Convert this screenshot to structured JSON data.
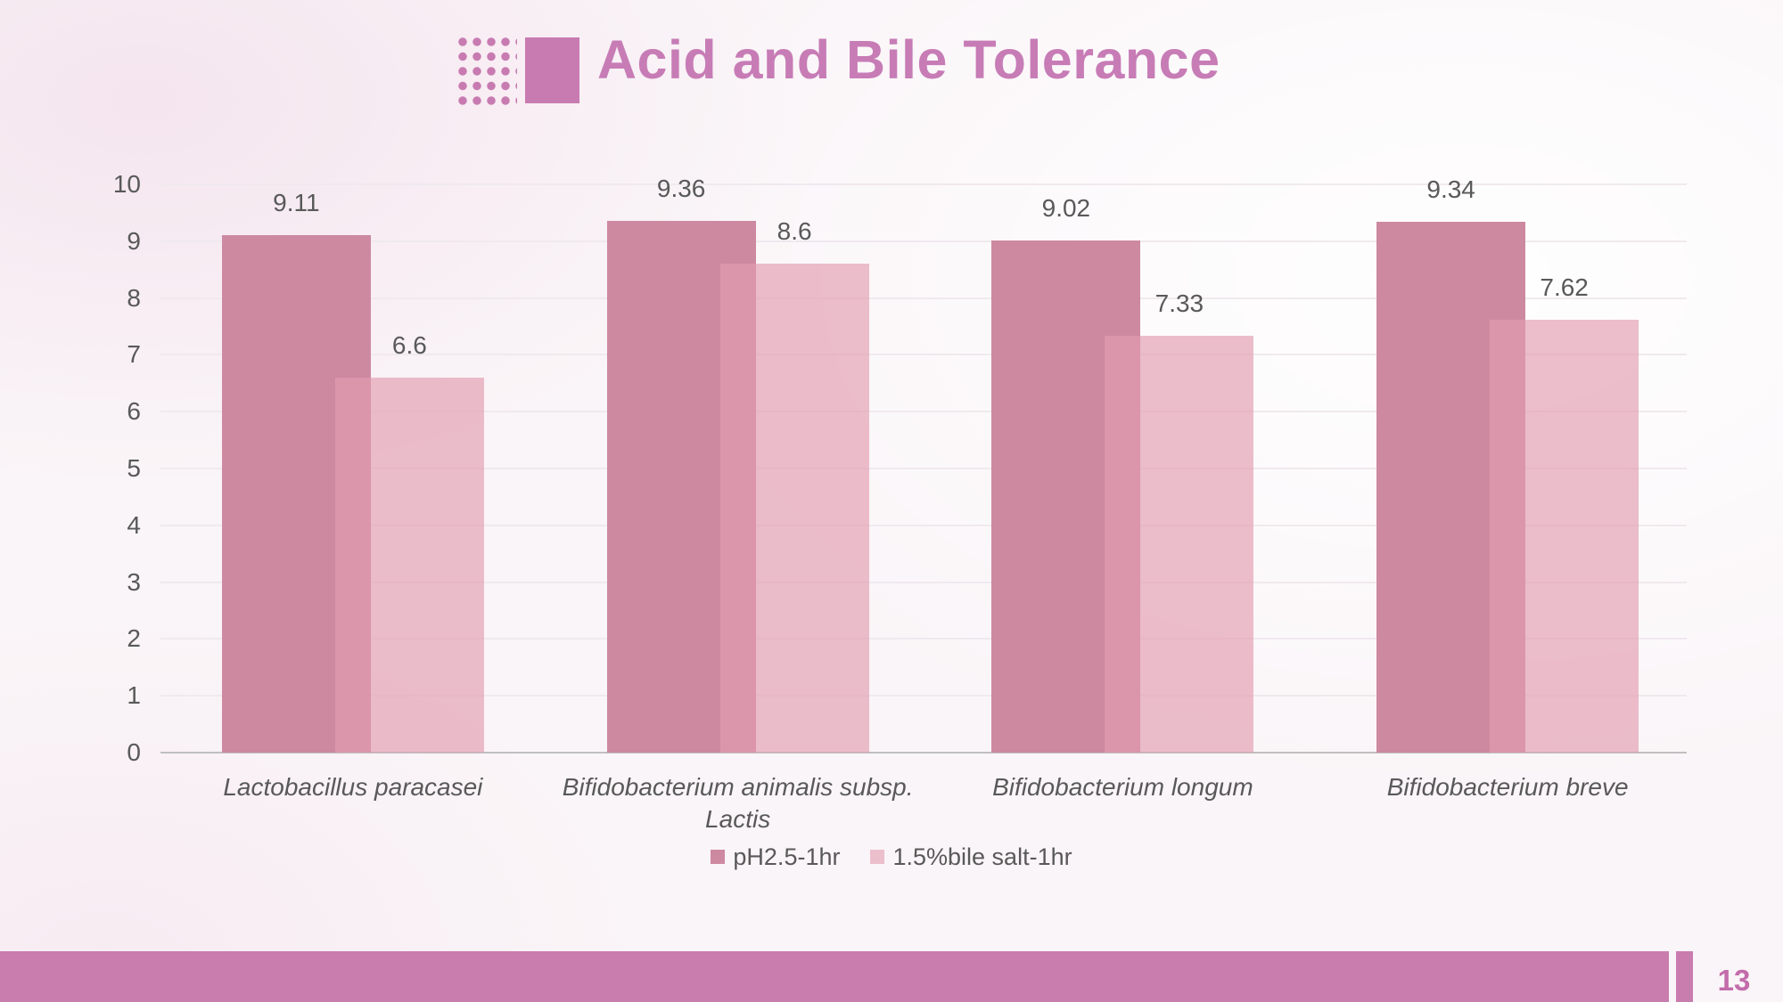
{
  "slide": {
    "title": "Acid and Bile Tolerance",
    "page_number": "13",
    "colors": {
      "accent": "#c87bb1",
      "title": "#c77cb6",
      "footer_bar": "#c97cae",
      "page_number": "#c36cab",
      "axis_text": "#595959"
    }
  },
  "chart_data": {
    "type": "bar",
    "title": "",
    "xlabel": "",
    "ylabel": "",
    "categories": [
      "Lactobacillus paracasei",
      "Bifidobacterium animalis subsp. Lactis",
      "Bifidobacterium longum",
      "Bifidobacterium breve"
    ],
    "series": [
      {
        "name": "pH2.5-1hr",
        "color": "#cd89a0",
        "values": [
          9.11,
          9.36,
          9.02,
          9.34
        ]
      },
      {
        "name": "1.5%bile salt-1hr",
        "color": "#ecbfcc",
        "fill": "rgba(226,157,176,0.66)",
        "values": [
          6.6,
          8.6,
          7.33,
          7.62
        ]
      }
    ],
    "ylim": [
      0,
      10
    ],
    "yticks": [
      0,
      1,
      2,
      3,
      4,
      5,
      6,
      7,
      8,
      9,
      10
    ],
    "grid": true,
    "legend_position": "bottom",
    "value_labels": true
  }
}
